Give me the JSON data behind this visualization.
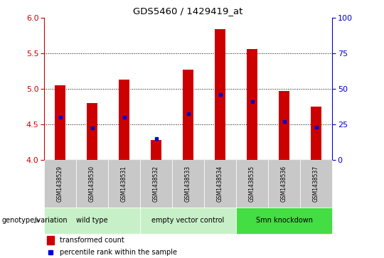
{
  "title": "GDS5460 / 1429419_at",
  "samples": [
    "GSM1438529",
    "GSM1438530",
    "GSM1438531",
    "GSM1438532",
    "GSM1438533",
    "GSM1438534",
    "GSM1438535",
    "GSM1438536",
    "GSM1438537"
  ],
  "transformed_counts": [
    5.05,
    4.8,
    5.13,
    4.28,
    5.27,
    5.84,
    5.56,
    4.97,
    4.75
  ],
  "percentile_ranks": [
    4.6,
    4.45,
    4.6,
    4.3,
    4.65,
    4.92,
    4.82,
    4.54,
    4.46
  ],
  "ylim": [
    4.0,
    6.0
  ],
  "yticks_left": [
    4.0,
    4.5,
    5.0,
    5.5,
    6.0
  ],
  "yticks_right": [
    0,
    25,
    50,
    75,
    100
  ],
  "bar_color": "#cc0000",
  "dot_color": "#0000cc",
  "bar_width": 0.35,
  "group_configs": [
    {
      "label": "wild type",
      "start": 0,
      "end": 2,
      "color": "#c8f0c8"
    },
    {
      "label": "empty vector control",
      "start": 3,
      "end": 5,
      "color": "#c8f0c8"
    },
    {
      "label": "Smn knockdown",
      "start": 6,
      "end": 8,
      "color": "#44dd44"
    }
  ],
  "sample_bg_color": "#c8c8c8",
  "ylabel_left_color": "#cc0000",
  "ylabel_right_color": "#0000cc",
  "legend_transformed": "transformed count",
  "legend_percentile": "percentile rank within the sample",
  "genotype_label": "genotype/variation",
  "grid_lines": [
    4.5,
    5.0,
    5.5
  ]
}
